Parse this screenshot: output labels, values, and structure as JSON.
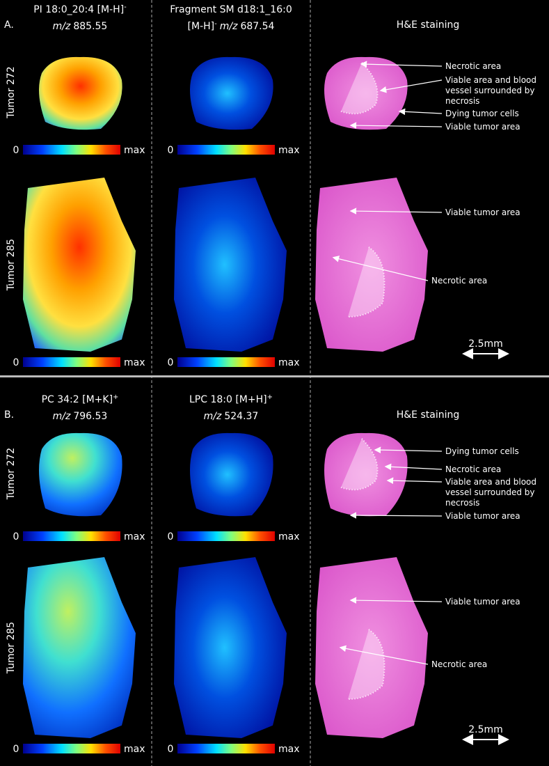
{
  "panels": [
    {
      "label": "A.",
      "headers": [
        {
          "lines": [
            [
              {
                "text": "PI 18:0_20:4 [M-H]"
              },
              {
                "text": "-",
                "format": "sup"
              }
            ],
            [
              {
                "text": "m/z",
                "format": "italic"
              },
              {
                "text": "885.55"
              }
            ]
          ]
        },
        {
          "lines": [
            [
              {
                "text": "Fragment SM d18:1_16:0"
              }
            ],
            [
              {
                "text": "[M-H]"
              },
              {
                "text": "-",
                "format": "sup"
              },
              {
                "text": "m/z",
                "format": "italic"
              },
              {
                "text": "687.54"
              }
            ]
          ]
        },
        {
          "lines": [
            [
              {
                "text": "H&E staining"
              }
            ]
          ]
        }
      ],
      "rows": [
        "Tumor 272",
        "Tumor 285"
      ],
      "he_annotations": [
        [
          {
            "lines": [
              "Necrotic area"
            ]
          },
          {
            "lines": [
              "Viable area and blood",
              "vessel surrounded by",
              "necrosis"
            ]
          },
          {
            "lines": [
              "Dying tumor cells"
            ]
          },
          {
            "lines": [
              "Viable tumor area"
            ]
          }
        ],
        [
          {
            "lines": [
              "Viable tumor area"
            ]
          },
          {
            "lines": [
              "Necrotic area"
            ]
          }
        ]
      ],
      "scale_bar": "2.5mm"
    },
    {
      "label": "B.",
      "headers": [
        {
          "lines": [
            [
              {
                "text": "PC 34:2 [M+K]"
              },
              {
                "text": "+",
                "format": "sup"
              }
            ],
            [
              {
                "text": "m/z",
                "format": "italic"
              },
              {
                "text": "796.53"
              }
            ]
          ]
        },
        {
          "lines": [
            [
              {
                "text": "LPC 18:0 [M+H]"
              },
              {
                "text": "+",
                "format": "sup"
              }
            ],
            [
              {
                "text": "m/z",
                "format": "italic"
              },
              {
                "text": "524.37"
              }
            ]
          ]
        },
        {
          "lines": [
            [
              {
                "text": "H&E staining"
              }
            ]
          ]
        }
      ],
      "rows": [
        "Tumor 272",
        "Tumor 285"
      ],
      "he_annotations": [
        [
          {
            "lines": [
              "Dying tumor cells"
            ]
          },
          {
            "lines": [
              "Necrotic area"
            ]
          },
          {
            "lines": [
              "Viable area and blood",
              "vessel surrounded by",
              "necrosis"
            ]
          },
          {
            "lines": [
              "Viable tumor area"
            ]
          }
        ],
        [
          {
            "lines": [
              "Viable tumor area"
            ]
          },
          {
            "lines": [
              "Necrotic area"
            ]
          }
        ]
      ],
      "scale_bar": "2.5mm"
    }
  ],
  "colorbar": {
    "min": "0",
    "max": "max"
  }
}
